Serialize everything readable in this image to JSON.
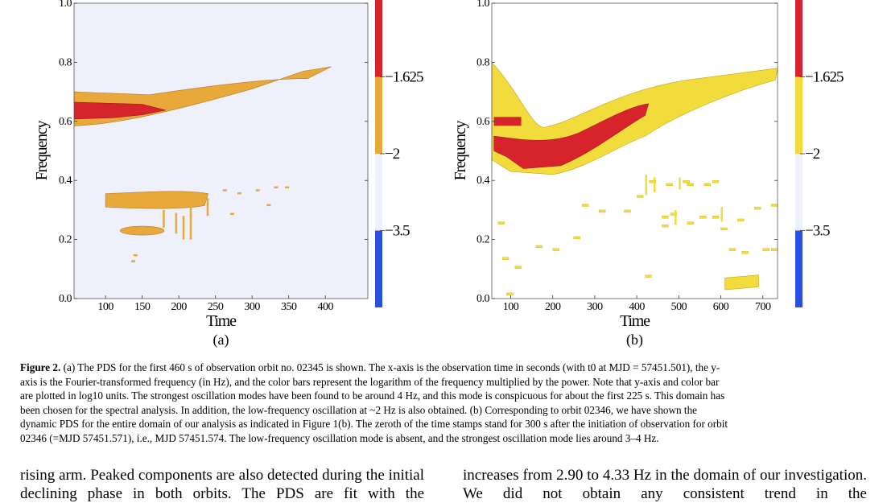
{
  "colors": {
    "plot_bg": "#eef0fb",
    "mid_level": "#e8a93a",
    "mid_level_b": "#f2dc3c",
    "high_level": "#d6232c",
    "low_bar": "#2b4fe0",
    "pale_bar": "#eef0fb"
  },
  "figure": {
    "panels": [
      {
        "id": "a",
        "sublabel": "(a)",
        "xlabel": "Time",
        "ylabel": "Frequency",
        "colorbar_labels": [
          "-1.625",
          "-2",
          "-3.5"
        ],
        "chart_data": {
          "type": "heatmap",
          "x_ticks": [
            "100",
            "150",
            "200",
            "250",
            "300",
            "350",
            "400"
          ],
          "y_ticks": [
            "0.0",
            "0.2",
            "0.4",
            "0.6",
            "0.8",
            "1.0"
          ],
          "xlim": [
            57,
            458
          ],
          "ylim": [
            0,
            1
          ],
          "colorbar": {
            "levels": [
              -3.5,
              -2,
              -1.625
            ]
          },
          "features": [
            {
              "level": "mid",
              "desc": "band rising 0.62-0.76",
              "x": [
                57,
                410
              ],
              "y": [
                0.58,
                0.78
              ]
            },
            {
              "level": "high",
              "desc": "strongest mode ~0.64",
              "x": [
                57,
                185
              ],
              "y": [
                0.6,
                0.66
              ]
            },
            {
              "level": "mid",
              "desc": "low band ~0.33",
              "x": [
                100,
                240
              ],
              "y": [
                0.3,
                0.36
              ]
            },
            {
              "level": "mid",
              "desc": "blob ~0.23",
              "x": [
                118,
                180
              ],
              "y": [
                0.21,
                0.25
              ]
            }
          ]
        }
      },
      {
        "id": "b",
        "sublabel": "(b)",
        "xlabel": "Time",
        "ylabel": "Frequency",
        "colorbar_labels": [
          "-1.625",
          "-2",
          "-3.5"
        ],
        "chart_data": {
          "type": "heatmap",
          "x_ticks": [
            "100",
            "200",
            "300",
            "400",
            "500",
            "600",
            "700"
          ],
          "y_ticks": [
            "0.0",
            "0.2",
            "0.4",
            "0.6",
            "0.8",
            "1.0"
          ],
          "xlim": [
            55,
            735
          ],
          "ylim": [
            0,
            1
          ],
          "colorbar": {
            "levels": [
              -3.5,
              -2,
              -1.625
            ]
          },
          "features": [
            {
              "level": "mid",
              "desc": "rising band 0.45-0.76",
              "x": [
                55,
                735
              ],
              "y": [
                0.42,
                0.78
              ]
            },
            {
              "level": "high",
              "desc": "strongest mode 0.45-0.66",
              "x": [
                55,
                430
              ],
              "y": [
                0.44,
                0.66
              ]
            },
            {
              "level": "mid",
              "desc": "low feature ~0.05",
              "x": [
                610,
                690
              ],
              "y": [
                0.03,
                0.07
              ]
            }
          ]
        }
      }
    ]
  },
  "caption": {
    "label": "Figure 2.",
    "lines": [
      " (a) The PDS for the first 460 s of observation orbit no. 02345 is shown. The x-axis is the observation time in seconds (with t0 at MJD = 57451.501), the y-",
      "axis is the Fourier-transformed frequency (in Hz), and the color bars represent the logarithm of the frequency multiplied by the power. Note that y-axis and color bar",
      "are plotted in log10 units. The strongest oscillation modes have been found to be around 4 Hz, and this mode is conspicuous for about the first 225 s. This domain has",
      "been chosen for the spectral analysis. In addition, the low-frequency oscillation at ~2 Hz is also obtained. (b) Corresponding to orbit 02346, we have shown the",
      "dynamic PDS for the entire domain of our analysis as indicated in Figure 1(b). The zeroth of the time stamps stand for 300 s after the initiation of observation for orbit",
      "02346 (=MJD 57451.571), i.e., MJD 57451.574. The low-frequency oscillation mode is absent, and the strongest oscillation mode lies around 3–4 Hz."
    ]
  },
  "body": {
    "left": "rising arm. Peaked components are also detected during the initial declining phase in both orbits. The PDS are fit with the",
    "right": "increases from 2.90 to 4.33 Hz in the domain of our investigation. We did not obtain any consistent trend in the"
  }
}
